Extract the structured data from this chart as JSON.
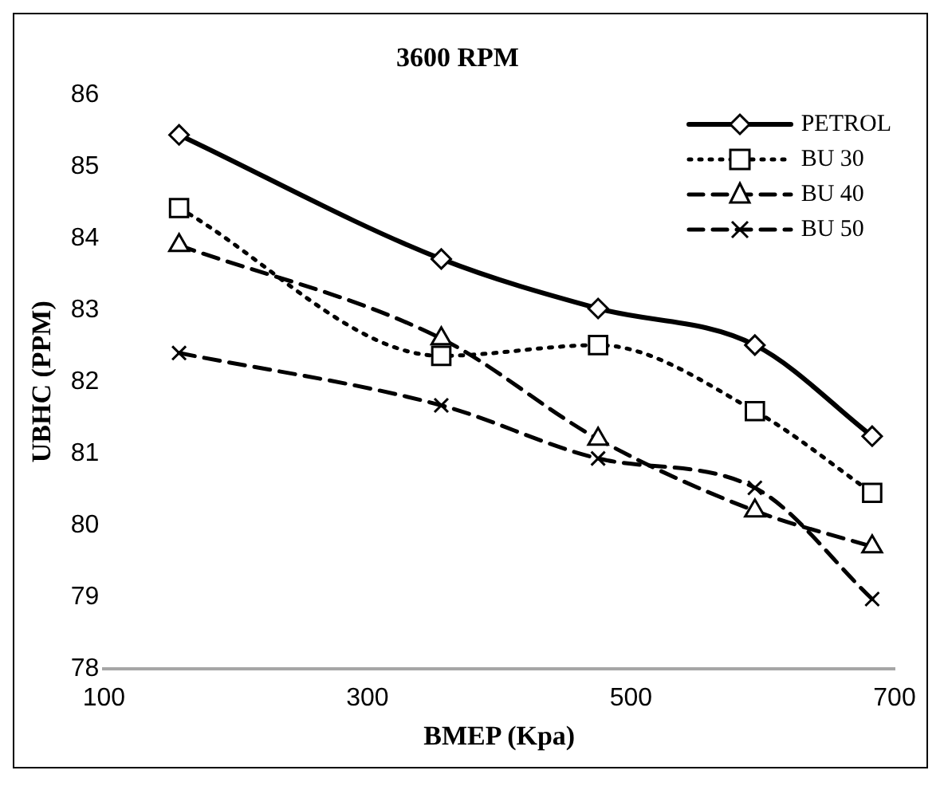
{
  "chart_data": {
    "type": "line",
    "title": "3600 RPM",
    "xlabel": "BMEP (Kpa)",
    "ylabel": "UBHC (PPM)",
    "x": [
      157,
      356,
      475,
      594,
      683
    ],
    "series": [
      {
        "name": "PETROL",
        "color": "#000000",
        "marker": "diamond",
        "line_style": "solid",
        "values": [
          85.44,
          83.71,
          83.02,
          82.51,
          81.24
        ]
      },
      {
        "name": "BU 30",
        "color": "#000000",
        "marker": "square",
        "line_style": "dotted",
        "values": [
          84.42,
          82.36,
          82.51,
          81.59,
          80.45
        ]
      },
      {
        "name": "BU 40",
        "color": "#000000",
        "marker": "triangle",
        "line_style": "dashed",
        "values": [
          83.9,
          82.6,
          81.2,
          80.2,
          79.7
        ]
      },
      {
        "name": "BU 50",
        "color": "#000000",
        "marker": "cross",
        "line_style": "dashed",
        "values": [
          82.4,
          81.67,
          80.93,
          80.52,
          78.97
        ]
      }
    ],
    "xlim": [
      100,
      700
    ],
    "xticks": [
      100,
      300,
      500,
      700
    ],
    "ylim": [
      78,
      86
    ],
    "yticks": [
      78,
      79,
      80,
      81,
      82,
      83,
      84,
      85,
      86
    ],
    "grid": false,
    "legend": "top right"
  }
}
